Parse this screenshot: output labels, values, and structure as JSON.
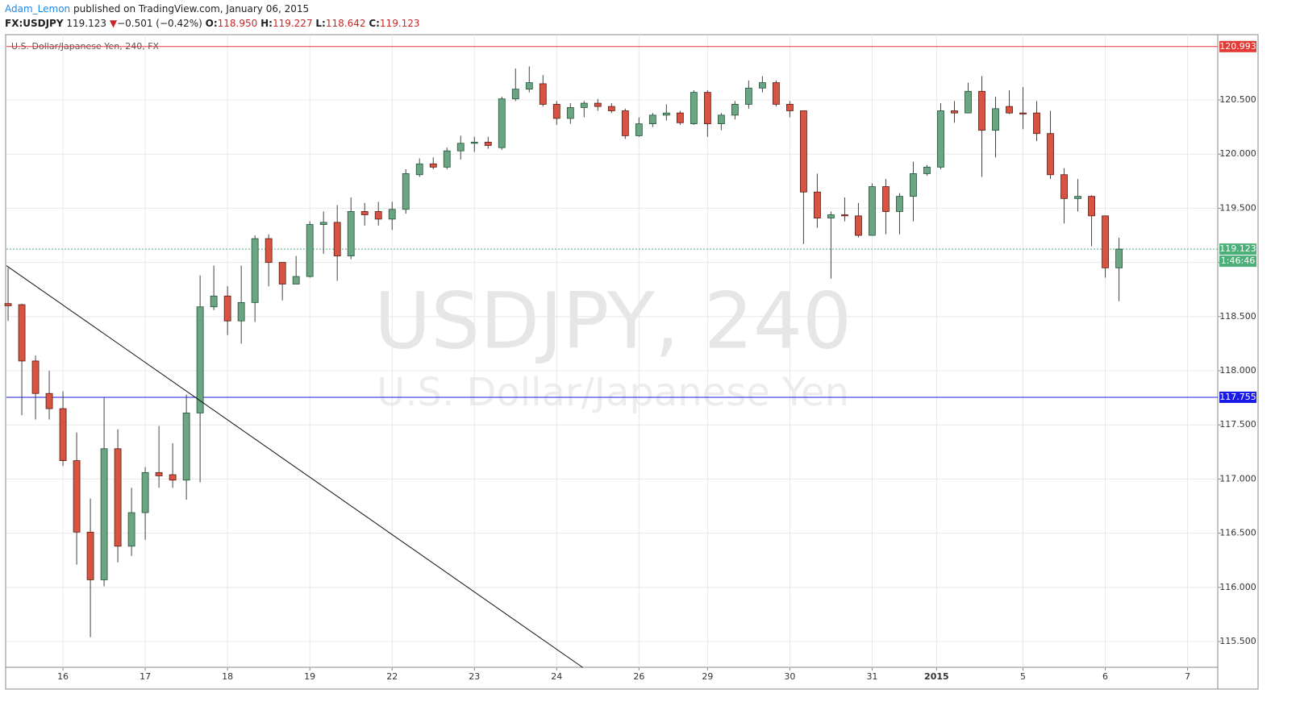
{
  "header": {
    "author": "Adam_Lemon",
    "published": "published on TradingView.com, January 06, 2015",
    "symbol": "FX:USDJPY",
    "last": "119.123",
    "arrow": "▼",
    "change": "−0.501 (−0.42%)",
    "open_label": "O:",
    "open": "118.950",
    "high_label": "H:",
    "high": "119.227",
    "low_label": "L:",
    "low": "118.642",
    "close_label": "C:",
    "close": "119.123"
  },
  "chart_data": {
    "type": "candlestick",
    "title": "U.S. Dollar/Japanese Yen, 240, FX",
    "watermark": [
      "USDJPY, 240",
      "U.S. Dollar/Japanese Yen"
    ],
    "up_color": "#6ba583",
    "down_color": "#d75442",
    "grid": true,
    "xlim": [
      -0.12,
      88.2
    ],
    "ylim": [
      115.262,
      121.103
    ],
    "xticks": [
      {
        "value": 4,
        "label": "16"
      },
      {
        "value": 10,
        "label": "17"
      },
      {
        "value": 16,
        "label": "18"
      },
      {
        "value": 22,
        "label": "19"
      },
      {
        "value": 28,
        "label": "22"
      },
      {
        "value": 34,
        "label": "23"
      },
      {
        "value": 40,
        "label": "24"
      },
      {
        "value": 46,
        "label": "26"
      },
      {
        "value": 51,
        "label": "29"
      },
      {
        "value": 57,
        "label": "30"
      },
      {
        "value": 63,
        "label": "31"
      },
      {
        "value": 67.7,
        "label": "2015"
      },
      {
        "value": 74,
        "label": "5"
      },
      {
        "value": 80,
        "label": "6"
      },
      {
        "value": 86,
        "label": "7"
      }
    ],
    "yticks": [
      {
        "value": 115.5,
        "label": "115.500"
      },
      {
        "value": 116,
        "label": "116.000"
      },
      {
        "value": 116.5,
        "label": "116.500"
      },
      {
        "value": 117,
        "label": "117.000"
      },
      {
        "value": 117.5,
        "label": "117.500"
      },
      {
        "value": 118,
        "label": "118.000"
      },
      {
        "value": 118.5,
        "label": "118.500"
      },
      {
        "value": 119,
        "label": "119.000"
      },
      {
        "value": 119.5,
        "label": "119.500"
      },
      {
        "value": 120,
        "label": "120.000"
      },
      {
        "value": 120.5,
        "label": "120.500"
      }
    ],
    "open": [
      118.62,
      118.61,
      118.09,
      117.79,
      117.65,
      117.17,
      116.51,
      116.07,
      117.28,
      116.38,
      116.69,
      117.06,
      117.04,
      116.99,
      117.61,
      118.59,
      118.69,
      118.46,
      118.63,
      119.22,
      119.0,
      118.8,
      118.87,
      119.35,
      119.37,
      119.06,
      119.47,
      119.47,
      119.4,
      119.49,
      119.81,
      119.91,
      119.88,
      120.03,
      120.1,
      120.11,
      120.06,
      120.51,
      120.6,
      120.65,
      120.46,
      120.33,
      120.43,
      120.47,
      120.44,
      120.4,
      120.17,
      120.28,
      120.36,
      120.38,
      120.28,
      120.57,
      120.28,
      120.36,
      120.46,
      120.61,
      120.66,
      120.46,
      120.4,
      119.65,
      119.41,
      119.44,
      119.43,
      119.25,
      119.7,
      119.47,
      119.61,
      119.82,
      119.88,
      120.4,
      120.38,
      120.58,
      120.22,
      120.44,
      120.38,
      120.38,
      120.19,
      119.81,
      119.59,
      119.61,
      119.43,
      118.95
    ],
    "high": [
      118.95,
      118.62,
      118.14,
      118.0,
      117.81,
      117.43,
      116.82,
      117.75,
      117.46,
      116.92,
      117.11,
      117.49,
      117.33,
      117.78,
      118.88,
      118.97,
      118.78,
      118.97,
      119.25,
      119.26,
      119.0,
      119.06,
      119.38,
      119.47,
      119.53,
      119.6,
      119.55,
      119.56,
      119.56,
      119.86,
      119.96,
      119.97,
      120.06,
      120.17,
      120.16,
      120.16,
      120.53,
      120.79,
      120.81,
      120.73,
      120.49,
      120.47,
      120.49,
      120.51,
      120.47,
      120.42,
      120.34,
      120.38,
      120.46,
      120.4,
      120.59,
      120.59,
      120.38,
      120.49,
      120.68,
      120.72,
      120.68,
      120.49,
      120.4,
      119.82,
      119.47,
      119.6,
      119.55,
      119.73,
      119.77,
      119.64,
      119.93,
      119.9,
      120.47,
      120.49,
      120.66,
      120.72,
      120.53,
      120.59,
      120.62,
      120.49,
      120.4,
      119.87,
      119.77,
      119.62,
      119.43,
      119.227
    ],
    "low": [
      118.46,
      117.59,
      117.55,
      117.55,
      117.12,
      116.21,
      115.54,
      116.01,
      116.23,
      116.29,
      116.44,
      116.92,
      116.92,
      116.81,
      116.97,
      118.56,
      118.33,
      118.25,
      118.45,
      118.78,
      118.65,
      118.8,
      118.86,
      119.08,
      118.83,
      119.03,
      119.34,
      119.34,
      119.3,
      119.45,
      119.79,
      119.86,
      119.86,
      119.95,
      120.02,
      120.05,
      120.04,
      120.49,
      120.57,
      120.44,
      120.27,
      120.28,
      120.34,
      120.4,
      120.38,
      120.14,
      120.16,
      120.25,
      120.31,
      120.27,
      120.27,
      120.16,
      120.22,
      120.32,
      120.42,
      120.57,
      120.44,
      120.34,
      119.17,
      119.32,
      118.85,
      119.38,
      119.23,
      119.25,
      119.26,
      119.26,
      119.38,
      119.8,
      119.86,
      120.29,
      120.38,
      119.79,
      119.97,
      120.37,
      120.23,
      120.12,
      119.77,
      119.36,
      119.47,
      119.15,
      118.86,
      118.642
    ],
    "close": [
      118.6,
      118.09,
      117.79,
      117.65,
      117.17,
      116.51,
      116.07,
      117.28,
      116.38,
      116.69,
      117.06,
      117.03,
      116.99,
      117.61,
      118.59,
      118.69,
      118.46,
      118.63,
      119.22,
      119.0,
      118.8,
      118.87,
      119.35,
      119.37,
      119.06,
      119.47,
      119.44,
      119.4,
      119.49,
      119.82,
      119.91,
      119.88,
      120.03,
      120.1,
      120.11,
      120.08,
      120.51,
      120.6,
      120.66,
      120.46,
      120.33,
      120.43,
      120.47,
      120.44,
      120.4,
      120.17,
      120.28,
      120.36,
      120.38,
      120.29,
      120.57,
      120.28,
      120.36,
      120.46,
      120.61,
      120.66,
      120.46,
      120.4,
      119.65,
      119.41,
      119.44,
      119.43,
      119.25,
      119.7,
      119.47,
      119.61,
      119.82,
      119.88,
      120.4,
      120.38,
      120.58,
      120.22,
      120.42,
      120.38,
      120.37,
      120.19,
      119.81,
      119.59,
      119.61,
      119.43,
      118.95,
      119.123
    ],
    "hlines": [
      {
        "value": 120.993,
        "color": "#e53935",
        "style": "solid"
      },
      {
        "value": 117.755,
        "color": "#1a1ae6",
        "style": "solid"
      },
      {
        "value": 119.123,
        "color": "#4caf78",
        "style": "dotted"
      }
    ],
    "countdown": "1:46:46",
    "trendline": {
      "x": [
        -0.12,
        41.9
      ],
      "y": [
        118.97,
        115.26
      ],
      "color": "#111"
    }
  }
}
